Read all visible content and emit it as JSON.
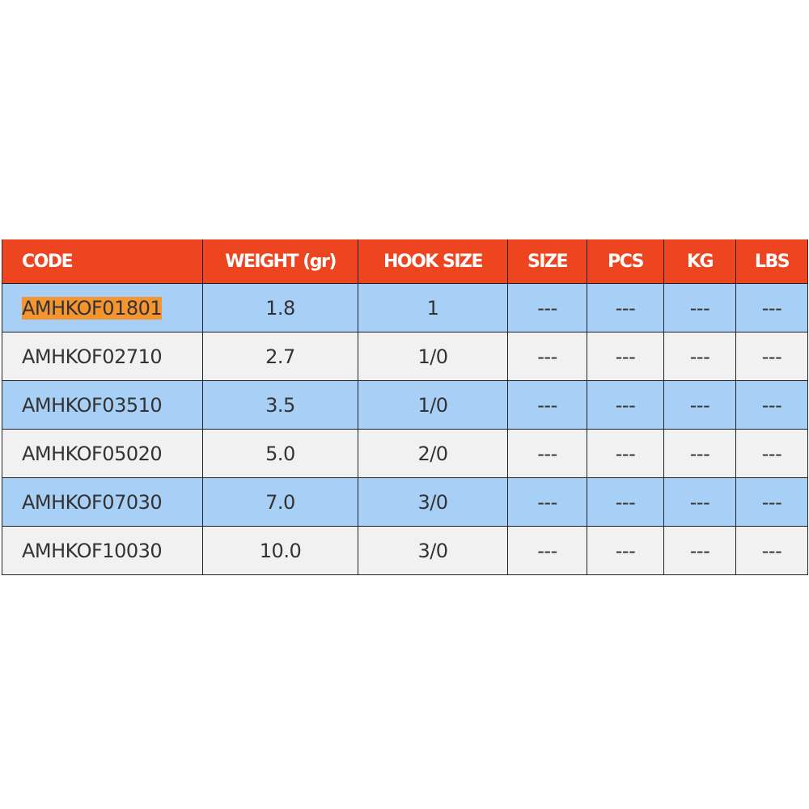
{
  "colors": {
    "header": "#ee4521",
    "row_blue": "#a8d0f6",
    "row_gray": "#f1f1f1",
    "highlight": "#f4952f"
  },
  "headers": [
    "CODE",
    "WEIGHT (gr)",
    "HOOK SIZE",
    "SIZE",
    "PCS",
    "KG",
    "LBS"
  ],
  "rows": [
    [
      "AMHKOF01801",
      "1.8",
      "1",
      "---",
      "---",
      "---",
      "---"
    ],
    [
      "AMHKOF02710",
      "2.7",
      "1/0",
      "---",
      "---",
      "---",
      "---"
    ],
    [
      "AMHKOF03510",
      "3.5",
      "1/0",
      "---",
      "---",
      "---",
      "---"
    ],
    [
      "AMHKOF05020",
      "5.0",
      "2/0",
      "---",
      "---",
      "---",
      "---"
    ],
    [
      "AMHKOF07030",
      "7.0",
      "3/0",
      "---",
      "---",
      "---",
      "---"
    ],
    [
      "AMHKOF10030",
      "10.0",
      "3/0",
      "---",
      "---",
      "---",
      "---"
    ]
  ]
}
